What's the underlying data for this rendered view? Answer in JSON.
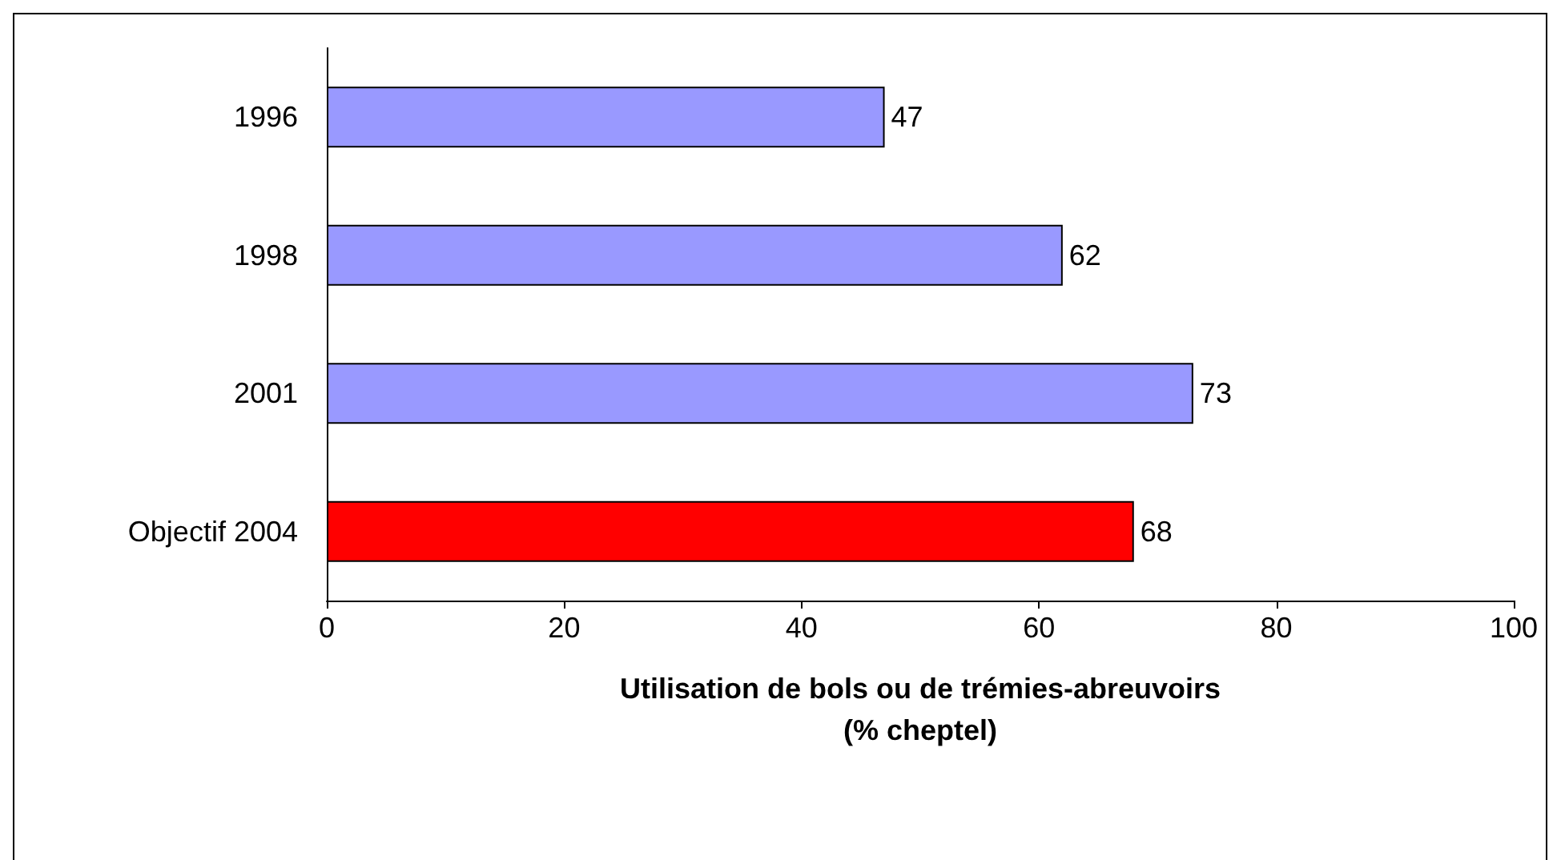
{
  "chart_data": {
    "type": "bar",
    "orientation": "horizontal",
    "categories": [
      "1996",
      "1998",
      "2001",
      "Objectif 2004"
    ],
    "values": [
      47,
      62,
      73,
      68
    ],
    "colors": [
      "#9999ff",
      "#9999ff",
      "#9999ff",
      "#ff0000"
    ],
    "xlim": [
      0,
      100
    ],
    "xticks": [
      0,
      20,
      40,
      60,
      80,
      100
    ],
    "xlabel": "Utilisation de bols ou de trémies-abreuvoirs\n(% cheptel)",
    "data_labels": true,
    "grid": false
  }
}
